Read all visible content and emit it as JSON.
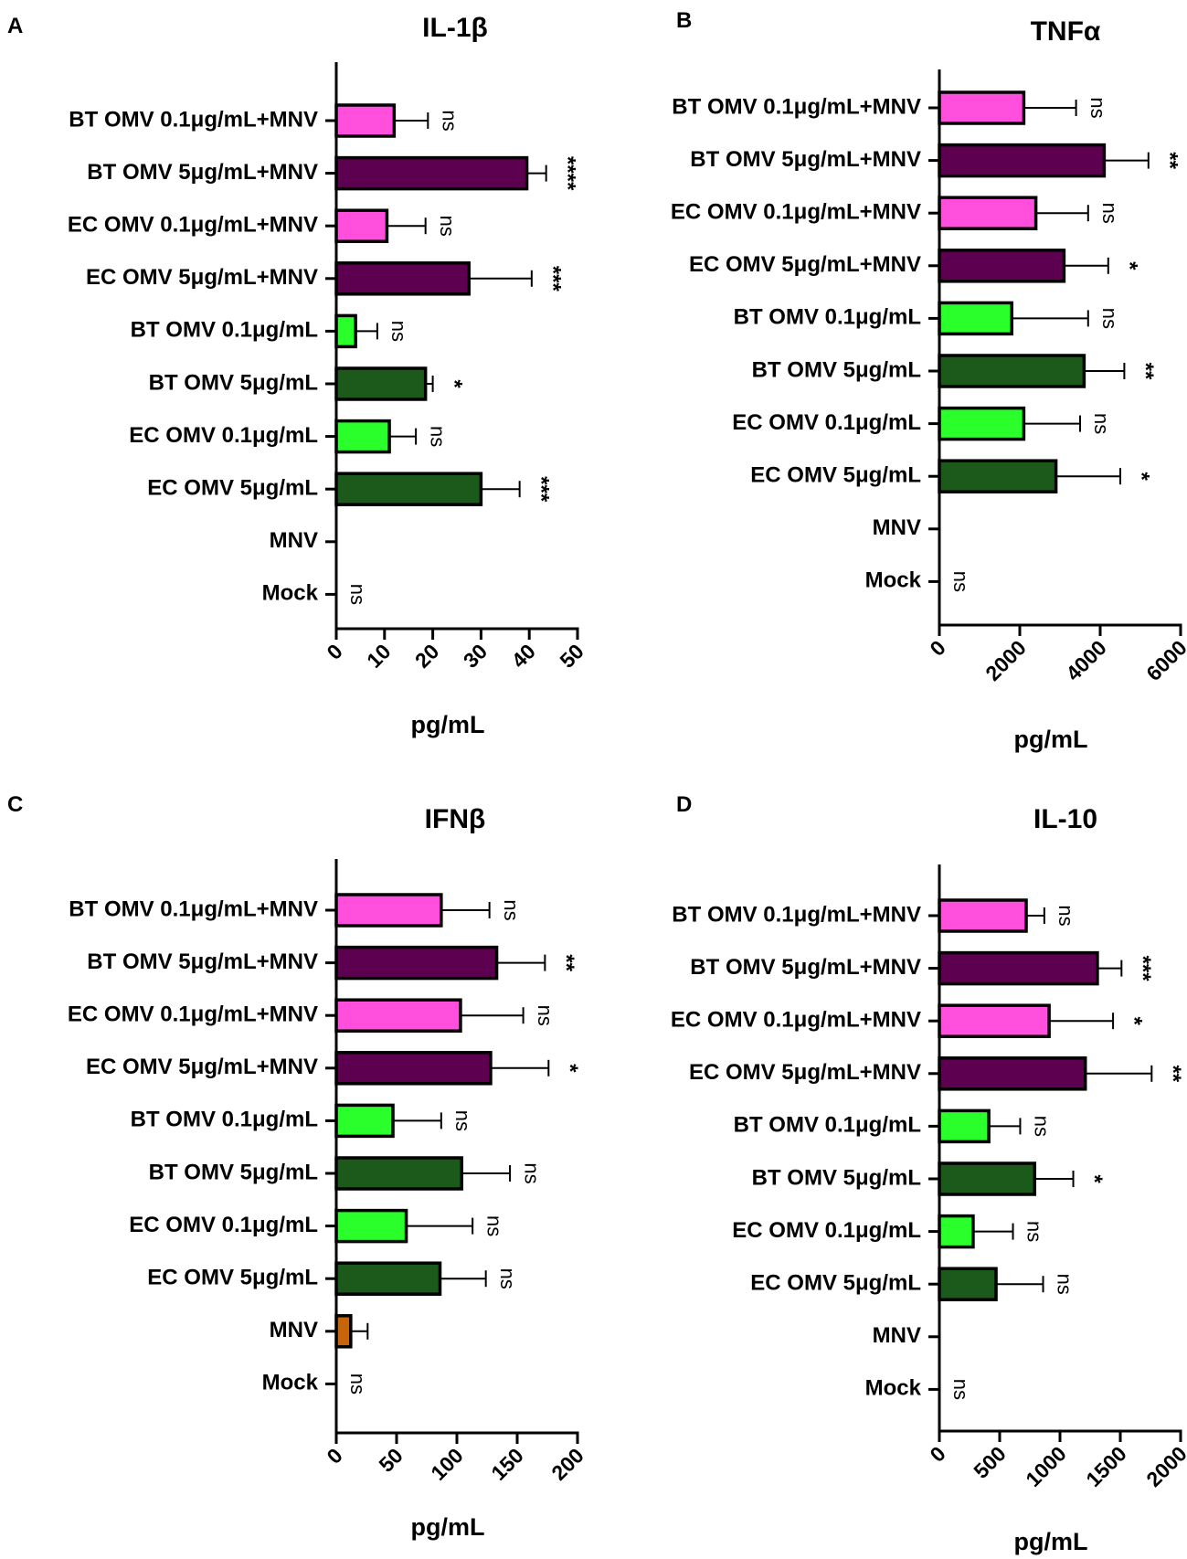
{
  "colors": {
    "light_pink": "#ff4fdc",
    "dark_purple": "#5e0050",
    "light_green": "#2bff2b",
    "dark_green": "#1c5a1c",
    "orange": "#c8640a",
    "ink": "#000000"
  },
  "chart_data": [
    {
      "panel": "A",
      "type": "bar",
      "orientation": "horizontal",
      "title": "IL-1β",
      "xlabel": "pg/mL",
      "xlim": [
        0,
        50
      ],
      "ticks": [
        0,
        10,
        20,
        30,
        40,
        50
      ],
      "tick_labels": [
        "0",
        "10",
        "20",
        "30",
        "40",
        "50"
      ],
      "rotate_ticks": false,
      "categories": [
        "BT OMV 0.1μg/mL+MNV",
        "BT OMV 5μg/mL+MNV",
        "EC OMV 0.1μg/mL+MNV",
        "EC OMV 5μg/mL+MNV",
        "BT OMV 0.1μg/mL",
        "BT OMV 5μg/mL",
        "EC OMV 0.1μg/mL",
        "EC OMV 5μg/mL",
        "MNV",
        "Mock"
      ],
      "values": [
        12,
        39.5,
        10.5,
        27.5,
        4,
        18.5,
        11,
        30,
        0,
        0
      ],
      "errors": [
        7,
        4,
        8,
        13,
        4.5,
        1.5,
        5.5,
        8,
        0,
        0
      ],
      "fill_colors": [
        "light_pink",
        "dark_purple",
        "light_pink",
        "dark_purple",
        "light_green",
        "dark_green",
        "light_green",
        "dark_green",
        "none",
        "none"
      ],
      "significance": [
        "ns",
        "****",
        "ns",
        "***",
        "ns",
        "*",
        "ns",
        "***",
        "",
        "ns"
      ]
    },
    {
      "panel": "B",
      "type": "bar",
      "orientation": "horizontal",
      "title": "TNFα",
      "xlabel": "pg/mL",
      "xlim": [
        0,
        6000
      ],
      "ticks": [
        0,
        2000,
        4000,
        6000
      ],
      "tick_labels": [
        "0",
        "2000",
        "4000",
        "6000"
      ],
      "rotate_ticks": true,
      "categories": [
        "BT OMV 0.1μg/mL+MNV",
        "BT OMV 5μg/mL+MNV",
        "EC OMV 0.1μg/mL+MNV",
        "EC OMV 5μg/mL+MNV",
        "BT OMV 0.1μg/mL",
        "BT OMV 5μg/mL",
        "EC OMV 0.1μg/mL",
        "EC OMV 5μg/mL",
        "MNV",
        "Mock"
      ],
      "values": [
        2100,
        4100,
        2400,
        3100,
        1800,
        3600,
        2100,
        2900,
        0,
        0
      ],
      "errors": [
        1300,
        1100,
        1300,
        1100,
        1900,
        1000,
        1400,
        1600,
        0,
        0
      ],
      "fill_colors": [
        "light_pink",
        "dark_purple",
        "light_pink",
        "dark_purple",
        "light_green",
        "dark_green",
        "light_green",
        "dark_green",
        "none",
        "none"
      ],
      "significance": [
        "ns",
        "**",
        "ns",
        "*",
        "ns",
        "**",
        "ns",
        "*",
        "",
        "ns"
      ]
    },
    {
      "panel": "C",
      "type": "bar",
      "orientation": "horizontal",
      "title": "IFNβ",
      "xlabel": "pg/mL",
      "xlim": [
        0,
        200
      ],
      "ticks": [
        0,
        50,
        100,
        150,
        200
      ],
      "tick_labels": [
        "0",
        "50",
        "100",
        "150",
        "200"
      ],
      "rotate_ticks": false,
      "categories": [
        "BT OMV 0.1μg/mL+MNV",
        "BT OMV 5μg/mL+MNV",
        "EC OMV 0.1μg/mL+MNV",
        "EC OMV 5μg/mL+MNV",
        "BT OMV 0.1μg/mL",
        "BT OMV 5μg/mL",
        "EC OMV 0.1μg/mL",
        "EC OMV 5μg/mL",
        "MNV",
        "Mock"
      ],
      "values": [
        87,
        133,
        103,
        128,
        47,
        104,
        58,
        86,
        12,
        0
      ],
      "errors": [
        40,
        40,
        52,
        48,
        40,
        40,
        55,
        38,
        14,
        0
      ],
      "fill_colors": [
        "light_pink",
        "dark_purple",
        "light_pink",
        "dark_purple",
        "light_green",
        "dark_green",
        "light_green",
        "dark_green",
        "orange",
        "none"
      ],
      "significance": [
        "ns",
        "**",
        "ns",
        "*",
        "ns",
        "ns",
        "ns",
        "ns",
        "",
        "ns"
      ]
    },
    {
      "panel": "D",
      "type": "bar",
      "orientation": "horizontal",
      "title": "IL-10",
      "xlabel": "pg/mL",
      "xlim": [
        0,
        2000
      ],
      "ticks": [
        0,
        500,
        1000,
        1500,
        2000
      ],
      "tick_labels": [
        "0",
        "500",
        "1000",
        "1500",
        "2000"
      ],
      "rotate_ticks": true,
      "categories": [
        "BT OMV 0.1μg/mL+MNV",
        "BT OMV 5μg/mL+MNV",
        "EC OMV 0.1μg/mL+MNV",
        "EC OMV 5μg/mL+MNV",
        "BT OMV 0.1μg/mL",
        "BT OMV 5μg/mL",
        "EC OMV 0.1μg/mL",
        "EC OMV 5μg/mL",
        "MNV",
        "Mock"
      ],
      "values": [
        720,
        1310,
        910,
        1210,
        410,
        790,
        280,
        470,
        0,
        0
      ],
      "errors": [
        150,
        200,
        530,
        550,
        260,
        320,
        330,
        390,
        0,
        0
      ],
      "fill_colors": [
        "light_pink",
        "dark_purple",
        "light_pink",
        "dark_purple",
        "light_green",
        "dark_green",
        "light_green",
        "dark_green",
        "none",
        "none"
      ],
      "significance": [
        "ns",
        "***",
        "*",
        "**",
        "ns",
        "*",
        "ns",
        "ns",
        "",
        "ns"
      ]
    }
  ]
}
